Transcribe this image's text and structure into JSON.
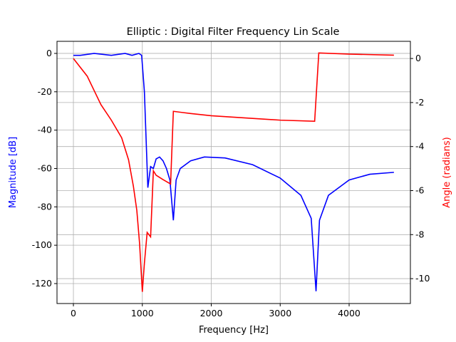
{
  "chart_data": {
    "type": "line",
    "title": "Elliptic : Digital Filter Frequency Lin Scale",
    "xlabel": "Frequency [Hz]",
    "ylabel": "Magnitude [dB]",
    "y2label": "Angle (radians)",
    "grid": true,
    "xlim": [
      -238,
      4889
    ],
    "xticks": [
      0,
      1000,
      2000,
      3000,
      4000
    ],
    "ylim": [
      -130.4,
      6.3
    ],
    "yticks": [
      0,
      -20,
      -40,
      -60,
      -80,
      -100,
      -120
    ],
    "y2lim": [
      -11.13,
      0.78
    ],
    "y2ticks": [
      0,
      -2,
      -4,
      -6,
      -8,
      -10
    ],
    "series": [
      {
        "color": "#0000ff",
        "x": [
          0,
          100,
          300,
          550,
          750,
          850,
          950,
          990,
          1030,
          1080,
          1120,
          1160,
          1200,
          1250,
          1300,
          1350,
          1400,
          1450,
          1490,
          1550,
          1700,
          1900,
          2200,
          2600,
          3000,
          3300,
          3450,
          3520,
          3570,
          3700,
          4000,
          4300,
          4650
        ],
        "values": [
          -1,
          -1,
          0,
          -1,
          0,
          -1,
          0,
          -1,
          -20,
          -70,
          -59,
          -60,
          -55,
          -54,
          -56,
          -60,
          -66,
          -87,
          -66,
          -60,
          -56,
          -54,
          -54.5,
          -58,
          -65,
          -74,
          -86,
          -124,
          -87,
          -74,
          -66,
          -63,
          -62
        ]
      },
      {
        "color": "#ff0000",
        "axis": "y2",
        "x": [
          0,
          200,
          400,
          550,
          700,
          800,
          870,
          920,
          960,
          1000,
          1030,
          1070,
          1120,
          1160,
          1200,
          1300,
          1410,
          1450,
          1700,
          2000,
          2500,
          3000,
          3500,
          3560,
          4000,
          4650
        ],
        "values": [
          0,
          -0.8,
          -2.1,
          -2.8,
          -3.6,
          -4.6,
          -5.8,
          -6.9,
          -8.4,
          -10.6,
          -9.3,
          -7.9,
          -8.1,
          -5.1,
          -5.3,
          -5.5,
          -5.7,
          -2.4,
          -2.5,
          -2.6,
          -2.7,
          -2.8,
          -2.85,
          0.25,
          0.2,
          0.15
        ]
      }
    ]
  }
}
